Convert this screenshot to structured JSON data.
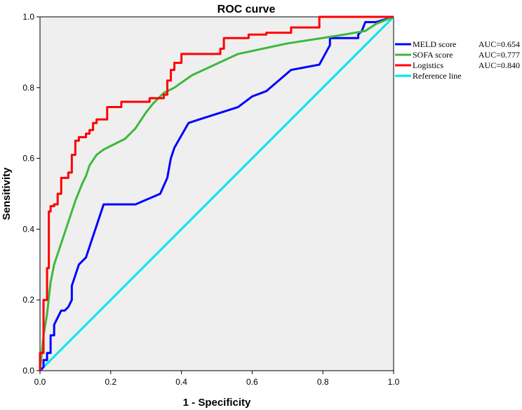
{
  "chart_data": {
    "type": "line",
    "title": "ROC curve",
    "xlabel": "1 - Specificity",
    "ylabel": "Sensitivity",
    "xlim": [
      0,
      1
    ],
    "ylim": [
      0,
      1
    ],
    "xticks": [
      0.0,
      0.2,
      0.4,
      0.6,
      0.8,
      1.0
    ],
    "yticks": [
      0.0,
      0.2,
      0.4,
      0.6,
      0.8,
      1.0
    ],
    "tick_labels": [
      "0.0",
      "0.2",
      "0.4",
      "0.6",
      "0.8",
      "1.0"
    ],
    "plot_background": "#efefef",
    "legend_position": "right",
    "series": [
      {
        "name": "MELD score",
        "auc_label": "AUC=0.654",
        "color": "#0000ff",
        "x": [
          0,
          0.01,
          0.01,
          0.02,
          0.02,
          0.03,
          0.03,
          0.04,
          0.04,
          0.05,
          0.06,
          0.07,
          0.08,
          0.09,
          0.09,
          0.1,
          0.11,
          0.13,
          0.14,
          0.15,
          0.16,
          0.17,
          0.18,
          0.19,
          0.27,
          0.34,
          0.36,
          0.37,
          0.38,
          0.42,
          0.45,
          0.56,
          0.6,
          0.64,
          0.71,
          0.79,
          0.82,
          0.82,
          0.83,
          0.9,
          0.9,
          0.91,
          0.92,
          0.95,
          1.0
        ],
        "y": [
          0,
          0.01,
          0.03,
          0.03,
          0.05,
          0.05,
          0.1,
          0.1,
          0.13,
          0.15,
          0.17,
          0.17,
          0.18,
          0.2,
          0.24,
          0.27,
          0.3,
          0.32,
          0.35,
          0.38,
          0.41,
          0.44,
          0.47,
          0.47,
          0.47,
          0.5,
          0.545,
          0.6,
          0.63,
          0.7,
          0.71,
          0.745,
          0.775,
          0.79,
          0.85,
          0.865,
          0.92,
          0.94,
          0.94,
          0.94,
          0.95,
          0.96,
          0.985,
          0.985,
          1.0
        ]
      },
      {
        "name": "SOFA score",
        "auc_label": "AUC=0.777",
        "color": "#3cb93c",
        "x": [
          0,
          0.01,
          0.02,
          0.03,
          0.04,
          0.06,
          0.08,
          0.1,
          0.12,
          0.13,
          0.14,
          0.16,
          0.18,
          0.24,
          0.27,
          0.3,
          0.32,
          0.35,
          0.38,
          0.43,
          0.56,
          0.7,
          0.83,
          0.92,
          0.95,
          1.0
        ],
        "y": [
          0,
          0.1,
          0.16,
          0.25,
          0.3,
          0.36,
          0.42,
          0.48,
          0.53,
          0.55,
          0.58,
          0.61,
          0.625,
          0.655,
          0.685,
          0.73,
          0.755,
          0.785,
          0.8,
          0.835,
          0.895,
          0.925,
          0.945,
          0.96,
          0.98,
          1.0
        ]
      },
      {
        "name": "Logistics",
        "auc_label": "AUC=0.840",
        "color": "#ff0000",
        "x": [
          0,
          0,
          0.01,
          0.01,
          0.02,
          0.02,
          0.025,
          0.025,
          0.03,
          0.03,
          0.04,
          0.04,
          0.05,
          0.05,
          0.06,
          0.06,
          0.08,
          0.08,
          0.09,
          0.09,
          0.1,
          0.1,
          0.11,
          0.11,
          0.13,
          0.13,
          0.14,
          0.14,
          0.15,
          0.15,
          0.16,
          0.16,
          0.19,
          0.19,
          0.23,
          0.23,
          0.31,
          0.31,
          0.35,
          0.35,
          0.36,
          0.36,
          0.37,
          0.37,
          0.38,
          0.38,
          0.4,
          0.4,
          0.51,
          0.51,
          0.52,
          0.52,
          0.59,
          0.59,
          0.64,
          0.64,
          0.71,
          0.71,
          0.79,
          0.79,
          1.0
        ],
        "y": [
          0,
          0.05,
          0.05,
          0.2,
          0.2,
          0.29,
          0.29,
          0.45,
          0.45,
          0.465,
          0.465,
          0.47,
          0.47,
          0.5,
          0.5,
          0.545,
          0.545,
          0.56,
          0.56,
          0.61,
          0.61,
          0.65,
          0.65,
          0.66,
          0.66,
          0.67,
          0.67,
          0.68,
          0.68,
          0.7,
          0.7,
          0.71,
          0.71,
          0.745,
          0.745,
          0.76,
          0.76,
          0.77,
          0.77,
          0.78,
          0.78,
          0.82,
          0.82,
          0.85,
          0.85,
          0.87,
          0.87,
          0.895,
          0.895,
          0.91,
          0.91,
          0.94,
          0.94,
          0.95,
          0.95,
          0.955,
          0.955,
          0.97,
          0.97,
          1.0,
          1.0
        ]
      },
      {
        "name": "Reference line",
        "auc_label": "",
        "color": "#00e5ee",
        "x": [
          0,
          1
        ],
        "y": [
          0,
          1
        ]
      }
    ]
  }
}
